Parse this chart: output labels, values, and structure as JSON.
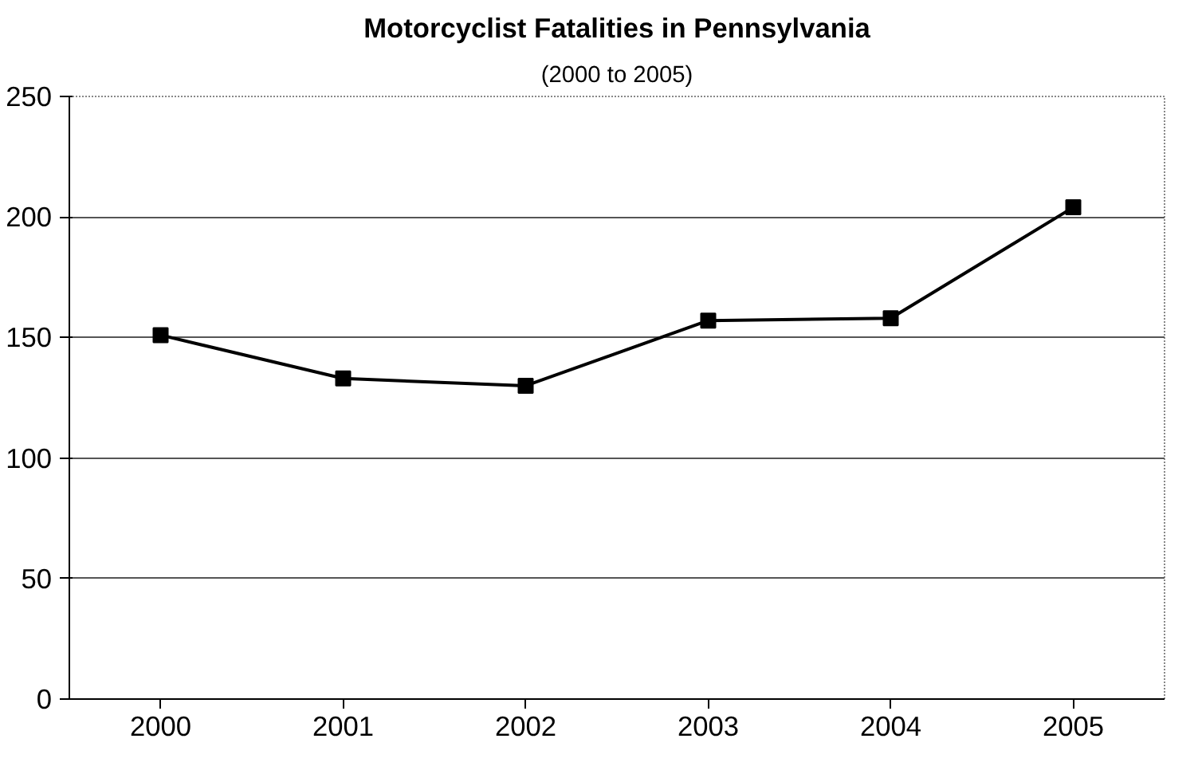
{
  "chart_data": {
    "type": "line",
    "title": "Motorcyclist Fatalities in Pennsylvania",
    "subtitle": "(2000 to 2005)",
    "categories": [
      "2000",
      "2001",
      "2002",
      "2003",
      "2004",
      "2005"
    ],
    "series": [
      {
        "color": "#000000",
        "values": [
          151,
          133,
          130,
          157,
          158,
          204
        ]
      }
    ],
    "ylim": [
      0,
      250
    ],
    "yticks": [
      0,
      50,
      100,
      150,
      200,
      250
    ],
    "grid": "y",
    "marker": "square",
    "line_style": "solid"
  }
}
